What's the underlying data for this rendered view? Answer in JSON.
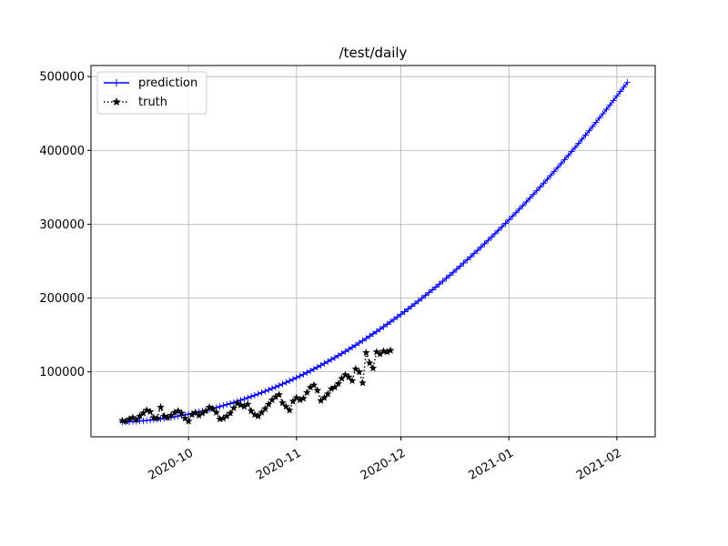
{
  "chart_data": {
    "type": "line",
    "title": "/test/daily",
    "xlabel": "",
    "ylabel": "",
    "grid": true,
    "legend_position": "top-left",
    "x_domain_dates": [
      "2020-09-03",
      "2021-02-12"
    ],
    "ylim": [
      12000,
      515000
    ],
    "x_ticks": [
      {
        "date": "2020-10-01",
        "label": "2020-10"
      },
      {
        "date": "2020-11-01",
        "label": "2020-11"
      },
      {
        "date": "2020-12-01",
        "label": "2020-12"
      },
      {
        "date": "2021-01-01",
        "label": "2021-01"
      },
      {
        "date": "2021-02-01",
        "label": "2021-02"
      }
    ],
    "y_ticks": [
      100000,
      200000,
      300000,
      400000,
      500000
    ],
    "series": [
      {
        "name": "prediction",
        "color": "#0000ff",
        "style": "solid",
        "marker": "plus",
        "start_date": "2020-09-12",
        "end_date": "2021-02-04",
        "step_days": 1,
        "model": "quadratic",
        "anchor_points": [
          {
            "date": "2020-09-12",
            "value": 32000
          },
          {
            "date": "2020-12-01",
            "value": 178000
          },
          {
            "date": "2021-02-04",
            "value": 492000
          }
        ]
      },
      {
        "name": "truth",
        "color": "#000000",
        "style": "dotted",
        "marker": "star",
        "start_date": "2020-09-12",
        "step_days": 1,
        "values": [
          34000,
          33000,
          36000,
          38000,
          35000,
          40000,
          44000,
          48000,
          46000,
          38000,
          37000,
          52000,
          40000,
          38000,
          41000,
          45000,
          47000,
          44000,
          37000,
          33000,
          42000,
          45000,
          41000,
          44000,
          47000,
          52000,
          50000,
          45000,
          36000,
          37000,
          40000,
          44000,
          51000,
          57000,
          55000,
          53000,
          56000,
          47000,
          42000,
          40000,
          45000,
          50000,
          56000,
          62000,
          66000,
          69000,
          58000,
          53000,
          48000,
          60000,
          65000,
          62000,
          64000,
          72000,
          79000,
          82000,
          75000,
          61000,
          65000,
          70000,
          77000,
          79000,
          84000,
          91000,
          96000,
          93000,
          88000,
          104000,
          100000,
          85000,
          126000,
          112000,
          105000,
          127000,
          124000,
          128000,
          127000,
          129000
        ]
      }
    ]
  }
}
